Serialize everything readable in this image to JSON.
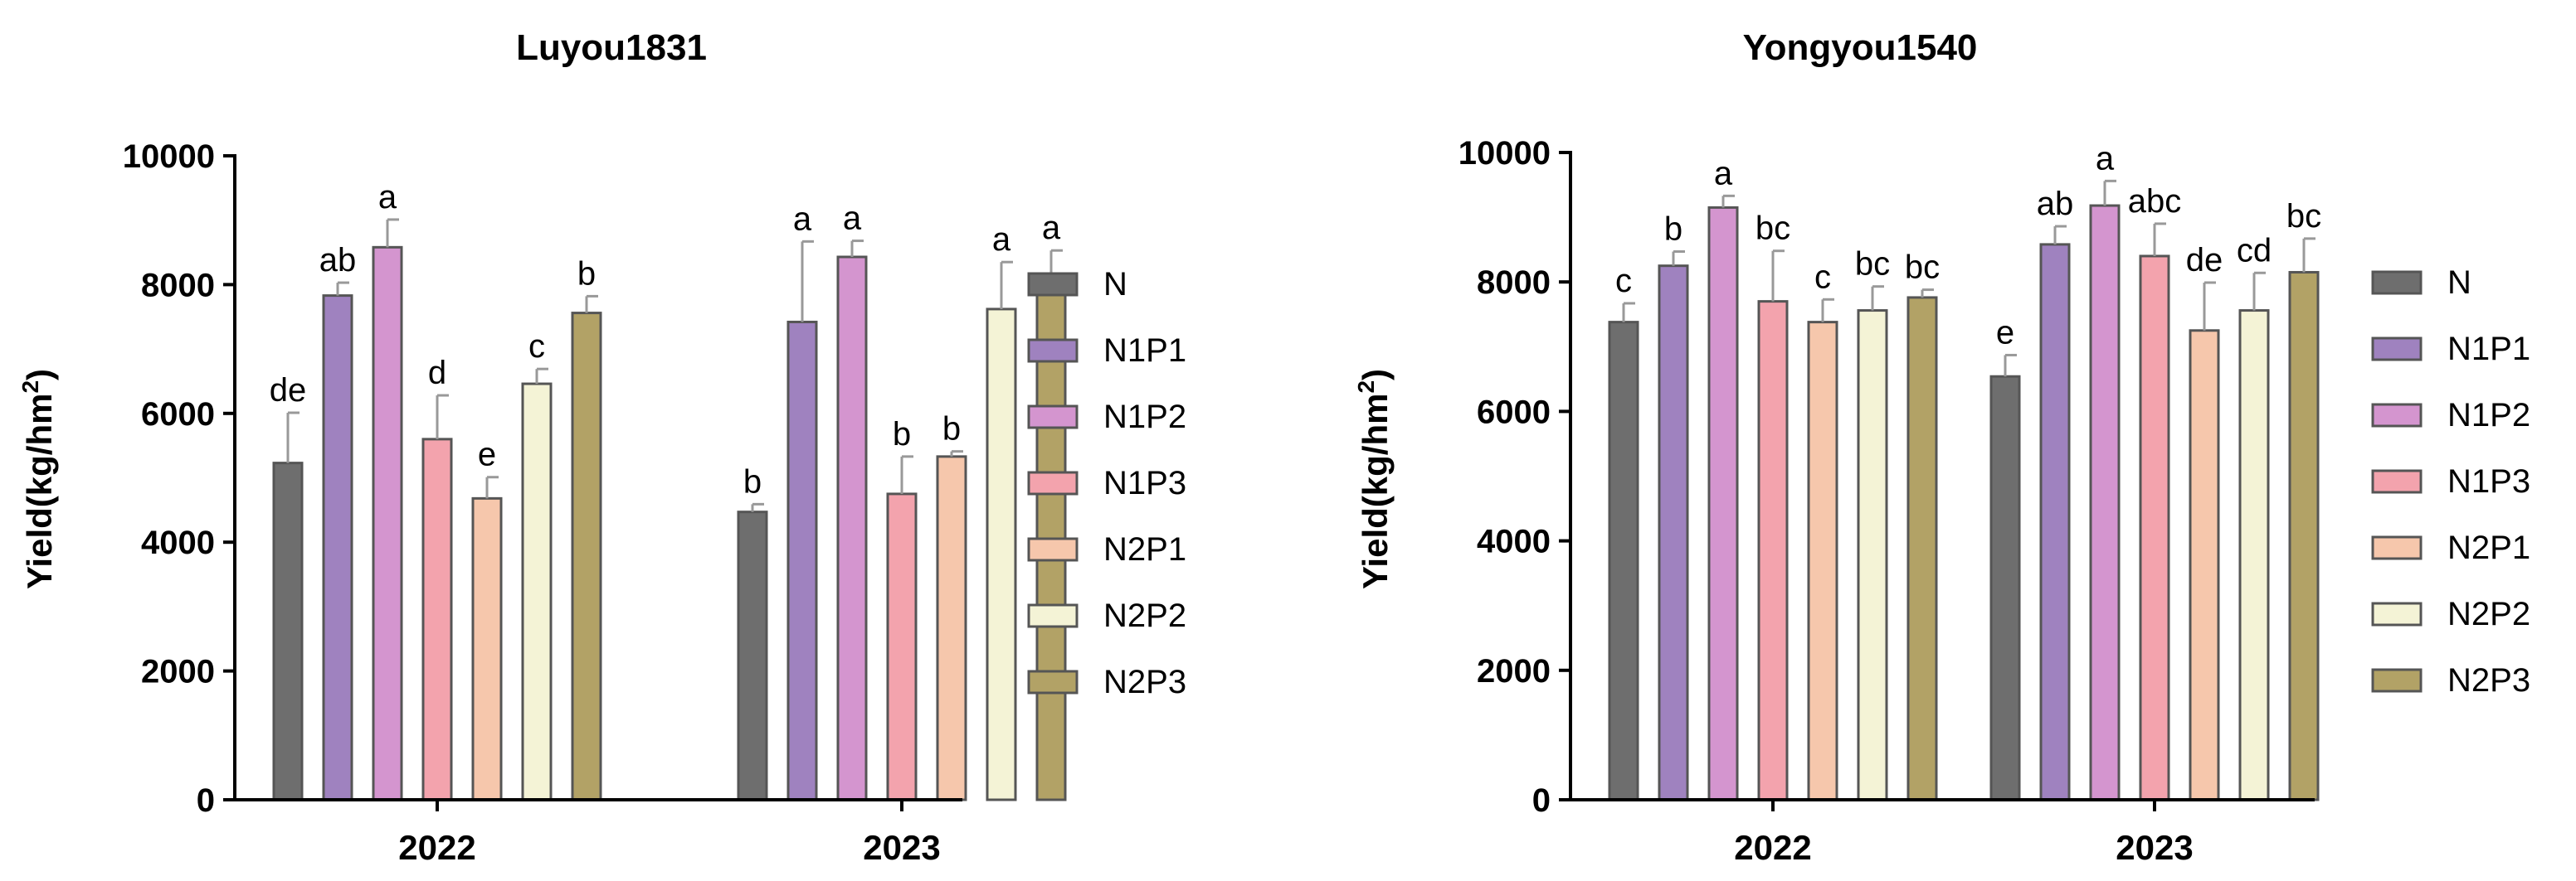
{
  "colors": {
    "N": "#6e6e6e",
    "N1P1": "#9f82bf",
    "N1P2": "#d495cf",
    "N1P3": "#f3a3ad",
    "N2P1": "#f6c7ac",
    "N2P2": "#f4f3d6",
    "N2P3": "#b2a266",
    "stroke": "#555555",
    "error": "#999999"
  },
  "chart_data": [
    {
      "type": "bar",
      "title": "Luyou1831",
      "xlabel": "",
      "ylabel": "Yield(kg/hm²)",
      "ylabel_main": "Yield(kg/hm",
      "ylabel_sup": "2",
      "ylabel_end": ")",
      "ylim": [
        0,
        10000
      ],
      "yticks": [
        "0",
        "2000",
        "4000",
        "6000",
        "8000",
        "10000"
      ],
      "categories": [
        "2022",
        "2023"
      ],
      "series": [
        {
          "name": "N",
          "values": [
            5230,
            4470
          ],
          "errors": [
            780,
            120
          ],
          "letters": [
            "de",
            "b"
          ]
        },
        {
          "name": "N1P1",
          "values": [
            7830,
            7420
          ],
          "errors": [
            200,
            1250
          ],
          "letters": [
            "ab",
            "a"
          ]
        },
        {
          "name": "N1P2",
          "values": [
            8580,
            8430
          ],
          "errors": [
            430,
            250
          ],
          "letters": [
            "a",
            "a"
          ]
        },
        {
          "name": "N1P3",
          "values": [
            5600,
            4750
          ],
          "errors": [
            680,
            580
          ],
          "letters": [
            "d",
            "b"
          ]
        },
        {
          "name": "N2P1",
          "values": [
            4680,
            5330
          ],
          "errors": [
            330,
            80
          ],
          "letters": [
            "e",
            "b"
          ]
        },
        {
          "name": "N2P2",
          "values": [
            6460,
            7620
          ],
          "errors": [
            230,
            730
          ],
          "letters": [
            "c",
            "a"
          ]
        },
        {
          "name": "N2P3",
          "values": [
            7560,
            7880
          ],
          "errors": [
            260,
            650
          ],
          "letters": [
            "b",
            "a"
          ]
        }
      ]
    },
    {
      "type": "bar",
      "title": "Yongyou1540",
      "xlabel": "",
      "ylabel": "Yield(kg/hm²)",
      "ylabel_main": "Yield(kg/hm",
      "ylabel_sup": "2",
      "ylabel_end": ")",
      "ylim": [
        0,
        10000
      ],
      "yticks": [
        "0",
        "2000",
        "4000",
        "6000",
        "8000",
        "10000"
      ],
      "categories": [
        "2022",
        "2023"
      ],
      "series": [
        {
          "name": "N",
          "values": [
            7380,
            6540
          ],
          "errors": [
            290,
            330
          ],
          "letters": [
            "c",
            "e"
          ]
        },
        {
          "name": "N1P1",
          "values": [
            8250,
            8580
          ],
          "errors": [
            220,
            280
          ],
          "letters": [
            "b",
            "ab"
          ]
        },
        {
          "name": "N1P2",
          "values": [
            9150,
            9180
          ],
          "errors": [
            180,
            380
          ],
          "letters": [
            "a",
            "a"
          ]
        },
        {
          "name": "N1P3",
          "values": [
            7700,
            8400
          ],
          "errors": [
            780,
            500
          ],
          "letters": [
            "bc",
            "abc"
          ]
        },
        {
          "name": "N2P1",
          "values": [
            7380,
            7250
          ],
          "errors": [
            350,
            740
          ],
          "letters": [
            "c",
            "de"
          ]
        },
        {
          "name": "N2P2",
          "values": [
            7560,
            7560
          ],
          "errors": [
            370,
            580
          ],
          "letters": [
            "bc",
            "cd"
          ]
        },
        {
          "name": "N2P3",
          "values": [
            7760,
            8150
          ],
          "errors": [
            120,
            520
          ],
          "letters": [
            "bc",
            "bc"
          ]
        }
      ]
    }
  ]
}
